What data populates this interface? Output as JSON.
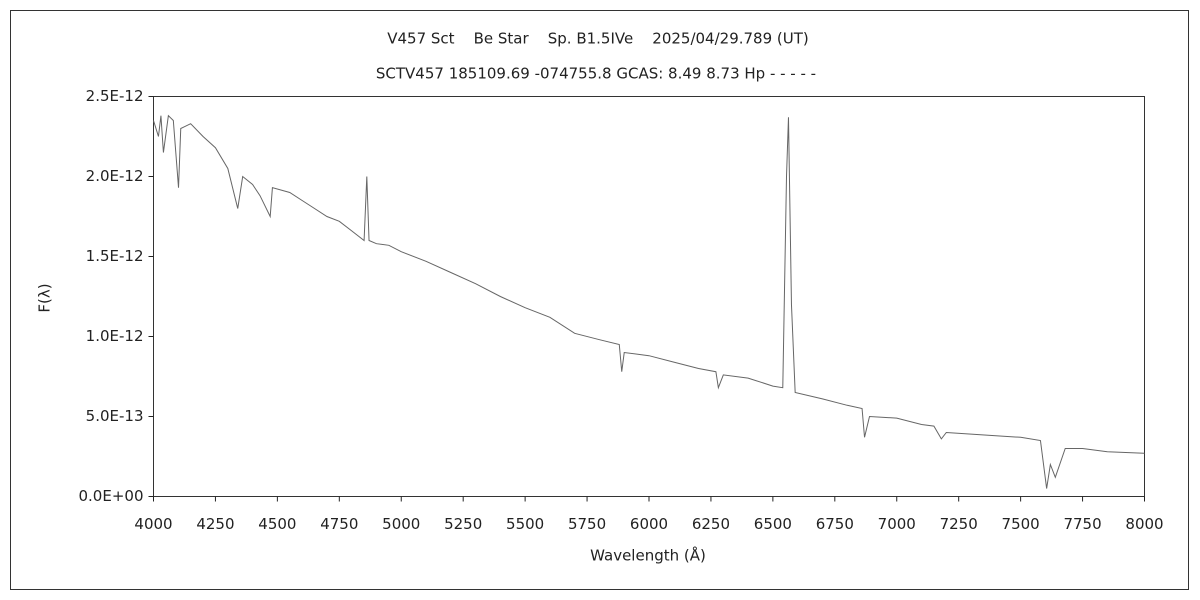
{
  "chart_data": {
    "type": "line",
    "title": "V457 Sct    Be Star    Sp. B1.5IVe    2025/04/29.789 (UT)",
    "subtitle": "SCTV457 185109.69 -074755.8 GCAS: 8.49 8.73 Hp - - - - -",
    "x_label": "Wavelength (Å)",
    "y_label": "F(λ)",
    "x": [
      4000,
      4020,
      4030,
      4040,
      4060,
      4080,
      4101,
      4110,
      4150,
      4200,
      4250,
      4300,
      4340,
      4360,
      4400,
      4430,
      4471,
      4480,
      4550,
      4600,
      4650,
      4700,
      4750,
      4800,
      4850,
      4861,
      4870,
      4900,
      4950,
      5000,
      5100,
      5200,
      5300,
      5400,
      5500,
      5600,
      5700,
      5800,
      5880,
      5890,
      5900,
      6000,
      6100,
      6200,
      6270,
      6280,
      6300,
      6400,
      6500,
      6540,
      6555,
      6563,
      6575,
      6590,
      6700,
      6800,
      6860,
      6870,
      6890,
      7000,
      7100,
      7150,
      7180,
      7200,
      7300,
      7400,
      7500,
      7580,
      7605,
      7620,
      7640,
      7680,
      7750,
      7850,
      8000
    ],
    "series": [
      {
        "name": "F(λ)",
        "color": "#666666",
        "values": [
          2.35e-12,
          2.25e-12,
          2.38e-12,
          2.15e-12,
          2.38e-12,
          2.35e-12,
          1.93e-12,
          2.3e-12,
          2.33e-12,
          2.25e-12,
          2.18e-12,
          2.05e-12,
          1.8e-12,
          2e-12,
          1.95e-12,
          1.88e-12,
          1.75e-12,
          1.93e-12,
          1.9e-12,
          1.85e-12,
          1.8e-12,
          1.75e-12,
          1.72e-12,
          1.66e-12,
          1.6e-12,
          2e-12,
          1.6e-12,
          1.58e-12,
          1.57e-12,
          1.53e-12,
          1.47e-12,
          1.4e-12,
          1.33e-12,
          1.25e-12,
          1.18e-12,
          1.12e-12,
          1.02e-12,
          9.8e-13,
          9.5e-13,
          7.8e-13,
          9e-13,
          8.8e-13,
          8.4e-13,
          8e-13,
          7.8e-13,
          6.8e-13,
          7.6e-13,
          7.4e-13,
          6.9e-13,
          6.8e-13,
          2e-12,
          2.37e-12,
          1.2e-12,
          6.5e-13,
          6.1e-13,
          5.7e-13,
          5.5e-13,
          3.7e-13,
          5e-13,
          4.9e-13,
          4.5e-13,
          4.4e-13,
          3.6e-13,
          4e-13,
          3.9e-13,
          3.8e-13,
          3.7e-13,
          3.5e-13,
          5e-14,
          2e-13,
          1.2e-13,
          3e-13,
          3e-13,
          2.8e-13,
          2.7e-13
        ]
      }
    ],
    "xlim": [
      4000,
      8000
    ],
    "xticks": [
      4000,
      4250,
      4500,
      4750,
      5000,
      5250,
      5500,
      5750,
      6000,
      6250,
      6500,
      6750,
      7000,
      7250,
      7500,
      7750,
      8000
    ],
    "ylim": [
      0,
      2.5e-12
    ],
    "yticks": [
      {
        "value": 0,
        "label": "0.0E+00"
      },
      {
        "value": 5e-13,
        "label": "5.0E-13"
      },
      {
        "value": 1e-12,
        "label": "1.0E-12"
      },
      {
        "value": 1.5e-12,
        "label": "1.5E-12"
      },
      {
        "value": 2e-12,
        "label": "2.0E-12"
      },
      {
        "value": 2.5e-12,
        "label": "2.5E-12"
      }
    ],
    "grid": false
  }
}
